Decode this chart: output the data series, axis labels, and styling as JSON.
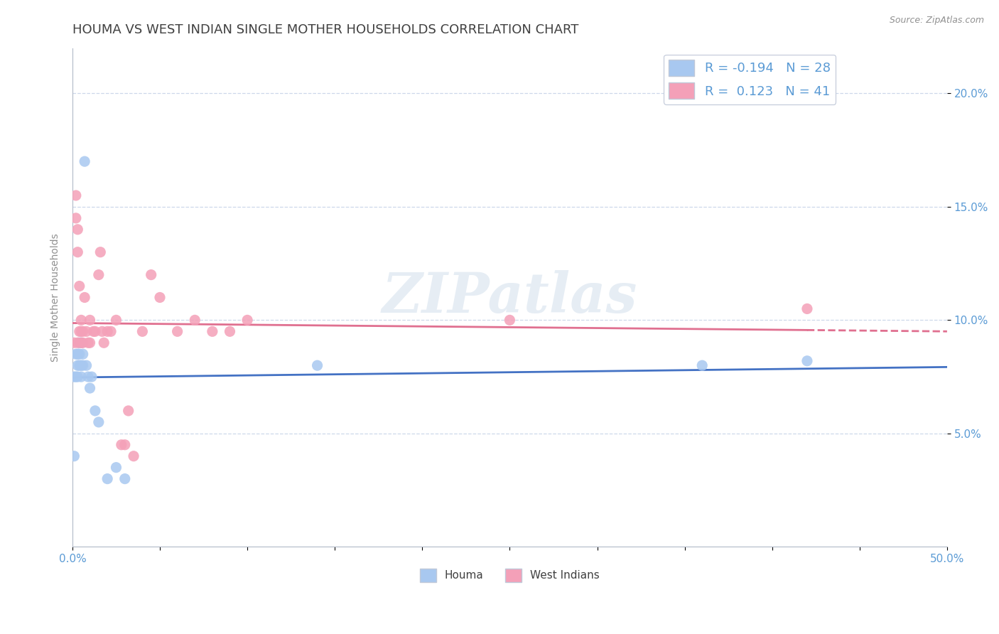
{
  "title": "HOUMA VS WEST INDIAN SINGLE MOTHER HOUSEHOLDS CORRELATION CHART",
  "source": "Source: ZipAtlas.com",
  "ylabel": "Single Mother Households",
  "ylabel_ticks": [
    0.05,
    0.1,
    0.15,
    0.2
  ],
  "ylabel_labels": [
    "5.0%",
    "10.0%",
    "15.0%",
    "20.0%"
  ],
  "xlim": [
    0.0,
    0.5
  ],
  "ylim": [
    0.0,
    0.22
  ],
  "houma_color": "#a8c8f0",
  "west_indian_color": "#f4a0b8",
  "houma_line_color": "#4472c4",
  "west_indian_line_color": "#e07090",
  "houma_R": -0.194,
  "houma_N": 28,
  "west_indian_R": 0.123,
  "west_indian_N": 41,
  "watermark": "ZIPatlas",
  "legend_label1": "Houma",
  "legend_label2": "West Indians",
  "houma_x": [
    0.001,
    0.001,
    0.002,
    0.002,
    0.003,
    0.003,
    0.003,
    0.004,
    0.004,
    0.004,
    0.005,
    0.005,
    0.005,
    0.006,
    0.006,
    0.007,
    0.008,
    0.009,
    0.01,
    0.011,
    0.013,
    0.015,
    0.02,
    0.025,
    0.03,
    0.14,
    0.36,
    0.42
  ],
  "houma_y": [
    0.04,
    0.075,
    0.075,
    0.085,
    0.075,
    0.08,
    0.085,
    0.08,
    0.085,
    0.09,
    0.075,
    0.08,
    0.09,
    0.08,
    0.085,
    0.17,
    0.08,
    0.075,
    0.07,
    0.075,
    0.06,
    0.055,
    0.03,
    0.035,
    0.03,
    0.08,
    0.08,
    0.082
  ],
  "west_indian_x": [
    0.001,
    0.002,
    0.002,
    0.003,
    0.003,
    0.003,
    0.004,
    0.004,
    0.005,
    0.005,
    0.005,
    0.006,
    0.006,
    0.007,
    0.008,
    0.009,
    0.01,
    0.01,
    0.012,
    0.013,
    0.015,
    0.016,
    0.017,
    0.018,
    0.02,
    0.022,
    0.025,
    0.028,
    0.03,
    0.032,
    0.035,
    0.04,
    0.045,
    0.05,
    0.06,
    0.07,
    0.08,
    0.09,
    0.1,
    0.25,
    0.42
  ],
  "west_indian_y": [
    0.09,
    0.155,
    0.145,
    0.13,
    0.14,
    0.09,
    0.095,
    0.115,
    0.09,
    0.095,
    0.1,
    0.09,
    0.095,
    0.11,
    0.095,
    0.09,
    0.09,
    0.1,
    0.095,
    0.095,
    0.12,
    0.13,
    0.095,
    0.09,
    0.095,
    0.095,
    0.1,
    0.045,
    0.045,
    0.06,
    0.04,
    0.095,
    0.12,
    0.11,
    0.095,
    0.1,
    0.095,
    0.095,
    0.1,
    0.1,
    0.105
  ],
  "title_fontsize": 13,
  "axis_label_fontsize": 10,
  "tick_fontsize": 11,
  "tick_color": "#5b9bd5",
  "title_color": "#404040",
  "grid_color": "#c8d4e8",
  "background_color": "#ffffff"
}
